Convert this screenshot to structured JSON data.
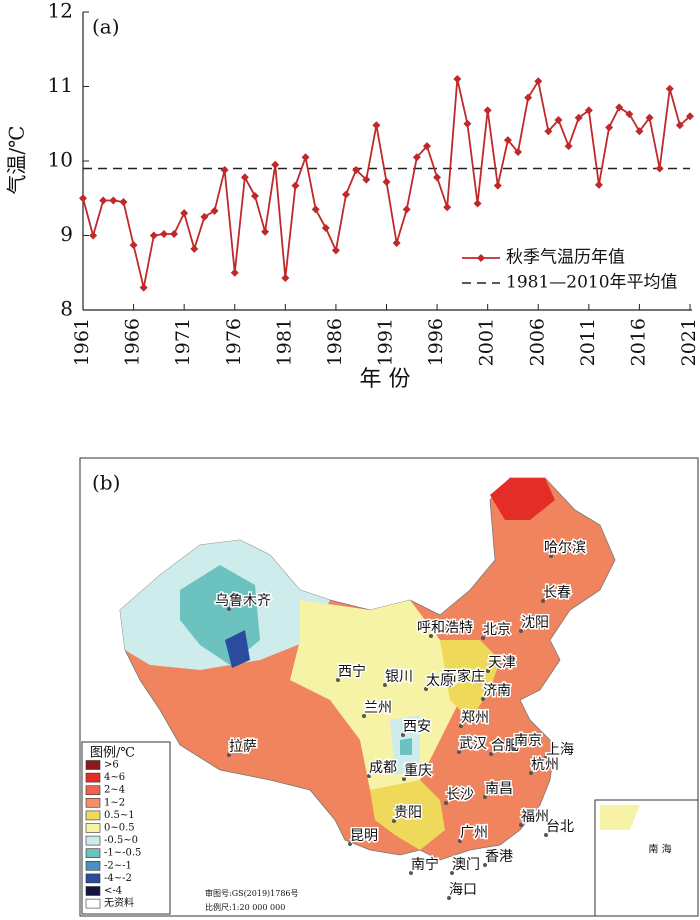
{
  "chart_data": {
    "type": "line",
    "panel_label": "(a)",
    "x_label": "年 份",
    "y_label": "气温/℃",
    "x": [
      1961,
      1962,
      1963,
      1964,
      1965,
      1966,
      1967,
      1968,
      1969,
      1970,
      1971,
      1972,
      1973,
      1974,
      1975,
      1976,
      1977,
      1978,
      1979,
      1980,
      1981,
      1982,
      1983,
      1984,
      1985,
      1986,
      1987,
      1988,
      1989,
      1990,
      1991,
      1992,
      1993,
      1994,
      1995,
      1996,
      1997,
      1998,
      1999,
      2000,
      2001,
      2002,
      2003,
      2004,
      2005,
      2006,
      2007,
      2008,
      2009,
      2010,
      2011,
      2012,
      2013,
      2014,
      2015,
      2016,
      2017,
      2018,
      2019,
      2020,
      2021
    ],
    "series": [
      {
        "name": "秋季气温历年值",
        "color": "#c0282a",
        "values": [
          9.5,
          9.0,
          9.47,
          9.47,
          9.45,
          8.87,
          8.3,
          9.0,
          9.02,
          9.02,
          9.3,
          8.82,
          9.25,
          9.33,
          9.88,
          8.5,
          9.78,
          9.53,
          9.05,
          9.95,
          8.43,
          9.67,
          10.05,
          9.35,
          9.1,
          8.8,
          9.55,
          9.88,
          9.75,
          10.48,
          9.72,
          8.9,
          9.35,
          10.05,
          10.2,
          9.78,
          9.38,
          11.1,
          10.5,
          9.43,
          10.68,
          9.67,
          10.28,
          10.12,
          10.85,
          11.07,
          10.4,
          10.55,
          10.2,
          10.58,
          10.68,
          9.68,
          10.45,
          10.72,
          10.63,
          10.4,
          10.58,
          9.9,
          10.97,
          10.48,
          10.6
        ]
      }
    ],
    "reference_line": {
      "name": "1981—2010年平均值",
      "value": 9.9,
      "color": "#222222"
    },
    "xlim": [
      1961,
      2021
    ],
    "xticks": [
      1961,
      1966,
      1971,
      1976,
      1981,
      1986,
      1991,
      1996,
      2001,
      2006,
      2011,
      2016,
      2021
    ],
    "ylim": [
      8,
      12
    ],
    "yticks": [
      8,
      9,
      10,
      11,
      12
    ],
    "legend": "lower right"
  },
  "map": {
    "panel_label": "(b)",
    "cities": [
      "乌鲁木齐",
      "哈尔滨",
      "长春",
      "沈阳",
      "呼和浩特",
      "北京",
      "天津",
      "石家庄",
      "太原",
      "济南",
      "西宁",
      "银川",
      "兰州",
      "西安",
      "郑州",
      "拉萨",
      "成都",
      "重庆",
      "武汉",
      "合肥",
      "南京",
      "上海",
      "杭州",
      "长沙",
      "南昌",
      "福州",
      "台北",
      "贵阳",
      "昆明",
      "广州",
      "南宁",
      "澳门",
      "香港",
      "海口"
    ],
    "legend": {
      "title": "图例/℃",
      "items": [
        {
          "label": ">6",
          "color": "#8b1a1a"
        },
        {
          "label": "4~6",
          "color": "#e32d26"
        },
        {
          "label": "2~4",
          "color": "#ef6150"
        },
        {
          "label": "1~2",
          "color": "#f2906a"
        },
        {
          "label": "0.5~1",
          "color": "#efd95a"
        },
        {
          "label": "0~0.5",
          "color": "#f7f3a6"
        },
        {
          "label": "-0.5~0",
          "color": "#cdeceb"
        },
        {
          "label": "-1~-0.5",
          "color": "#6cc2be"
        },
        {
          "label": "-2~-1",
          "color": "#4a8fc6"
        },
        {
          "label": "-4~-2",
          "color": "#2b4b9e"
        },
        {
          "label": "<-4",
          "color": "#14143e"
        },
        {
          "label": "无资料",
          "color": "#ffffff"
        }
      ]
    },
    "notes": [
      "审图号:GS(2019)1786号",
      "比例尺:1:20 000 000"
    ],
    "inset": "南 海"
  }
}
